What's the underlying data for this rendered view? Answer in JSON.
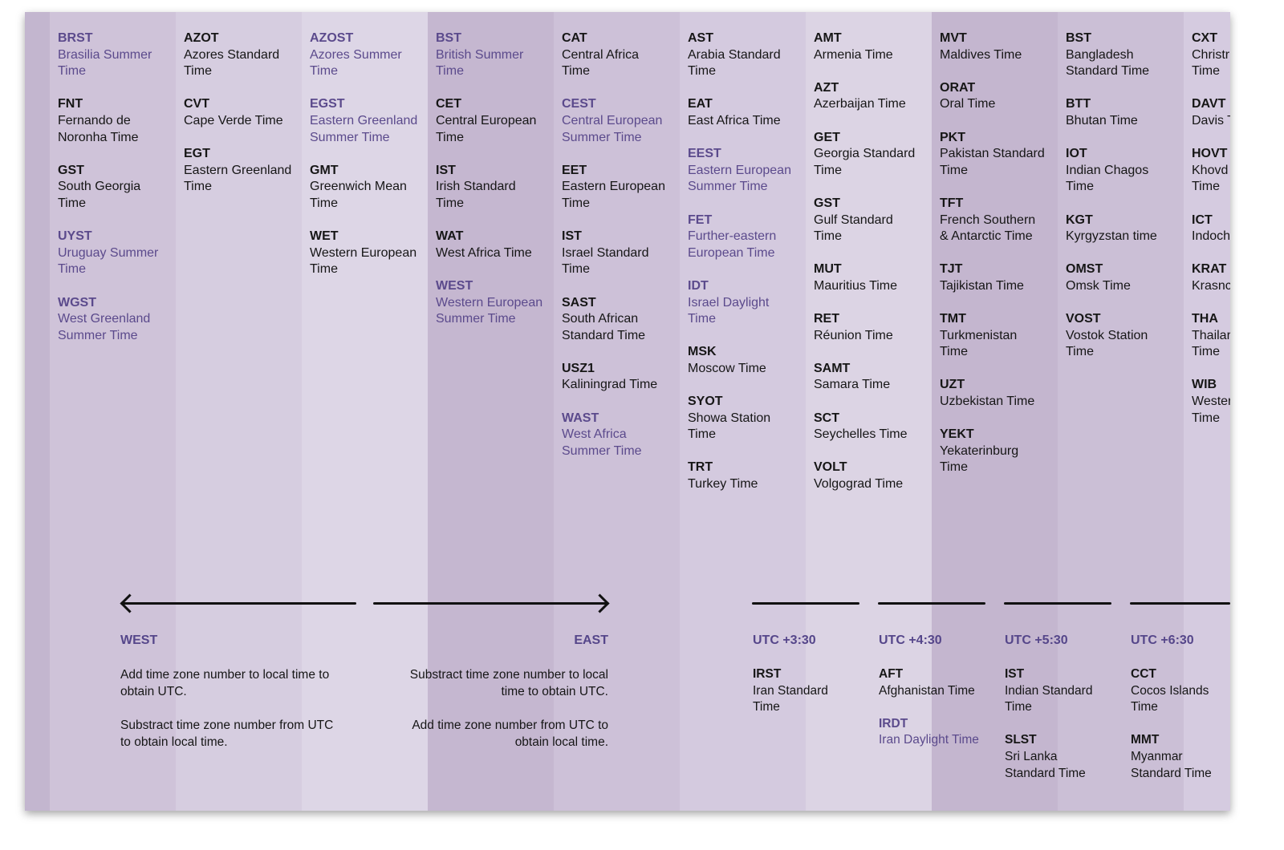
{
  "colors": {
    "summer_text": "#5b4a8c",
    "standard_text": "#161616",
    "column_shades": [
      "#c3b6cf",
      "#cfc3d9",
      "#d6cde0",
      "#ddd6e6",
      "#c5b7d0",
      "#cdc1d8",
      "#d4cadf",
      "#dcd4e4",
      "#c4b6cf",
      "#cbbfd6",
      "#d5cbe0"
    ]
  },
  "columns": [
    {
      "entries": [
        {
          "code": "BRST",
          "name": "Brasilia Summer\nTime",
          "summer": true
        },
        {
          "code": "FNT",
          "name": "Fernando de\nNoronha Time",
          "summer": false
        },
        {
          "code": "GST",
          "name": "South Georgia\nTime",
          "summer": false
        },
        {
          "code": "UYST",
          "name": "Uruguay Summer\nTime",
          "summer": true
        },
        {
          "code": "WGST",
          "name": "West Greenland\nSummer Time",
          "summer": true
        }
      ]
    },
    {
      "entries": [
        {
          "code": "AZOT",
          "name": "Azores Standard\nTime",
          "summer": false
        },
        {
          "code": "CVT",
          "name": "Cape Verde Time",
          "summer": false
        },
        {
          "code": "EGT",
          "name": "Eastern Greenland\nTime",
          "summer": false
        }
      ]
    },
    {
      "entries": [
        {
          "code": "AZOST",
          "name": "Azores Summer\nTime",
          "summer": true
        },
        {
          "code": "EGST",
          "name": "Eastern Greenland\nSummer Time",
          "summer": true
        },
        {
          "code": "GMT",
          "name": "Greenwich Mean\nTime",
          "summer": false
        },
        {
          "code": "WET",
          "name": "Western European\nTime",
          "summer": false
        }
      ]
    },
    {
      "entries": [
        {
          "code": "BST",
          "name": "British Summer\nTime",
          "summer": true
        },
        {
          "code": "CET",
          "name": "Central European\nTime",
          "summer": false
        },
        {
          "code": "IST",
          "name": "Irish Standard\nTime",
          "summer": false
        },
        {
          "code": "WAT",
          "name": "West Africa Time",
          "summer": false
        },
        {
          "code": "WEST",
          "name": "Western European\nSummer Time",
          "summer": true
        }
      ]
    },
    {
      "entries": [
        {
          "code": "CAT",
          "name": "Central Africa\nTime",
          "summer": false
        },
        {
          "code": "CEST",
          "name": "Central European\nSummer Time",
          "summer": true
        },
        {
          "code": "EET",
          "name": "Eastern European\nTime",
          "summer": false
        },
        {
          "code": "IST",
          "name": "Israel Standard\nTime",
          "summer": false
        },
        {
          "code": "SAST",
          "name": "South African\nStandard Time",
          "summer": false
        },
        {
          "code": "USZ1",
          "name": "Kaliningrad Time",
          "summer": false
        },
        {
          "code": "WAST",
          "name": "West Africa\nSummer Time",
          "summer": true
        }
      ]
    },
    {
      "entries": [
        {
          "code": "AST",
          "name": "Arabia Standard\nTime",
          "summer": false
        },
        {
          "code": "EAT",
          "name": "East Africa Time",
          "summer": false
        },
        {
          "code": "EEST",
          "name": "Eastern European\nSummer Time",
          "summer": true
        },
        {
          "code": "FET",
          "name": "Further-eastern\nEuropean Time",
          "summer": true
        },
        {
          "code": "IDT",
          "name": "Israel Daylight\nTime",
          "summer": true
        },
        {
          "code": "MSK",
          "name": "Moscow Time",
          "summer": false
        },
        {
          "code": "SYOT",
          "name": "Showa Station\nTime",
          "summer": false
        },
        {
          "code": "TRT",
          "name": "Turkey Time",
          "summer": false
        }
      ]
    },
    {
      "entries": [
        {
          "code": "AMT",
          "name": "Armenia Time",
          "summer": false
        },
        {
          "code": "AZT",
          "name": "Azerbaijan Time",
          "summer": false
        },
        {
          "code": "GET",
          "name": "Georgia Standard\nTime",
          "summer": false
        },
        {
          "code": "GST",
          "name": "Gulf Standard\nTime",
          "summer": false
        },
        {
          "code": "MUT",
          "name": "Mauritius Time",
          "summer": false
        },
        {
          "code": "RET",
          "name": "Réunion Time",
          "summer": false
        },
        {
          "code": "SAMT",
          "name": "Samara Time",
          "summer": false
        },
        {
          "code": "SCT",
          "name": "Seychelles Time",
          "summer": false
        },
        {
          "code": "VOLT",
          "name": "Volgograd Time",
          "summer": false
        }
      ]
    },
    {
      "entries": [
        {
          "code": "MVT",
          "name": "Maldives Time",
          "summer": false
        },
        {
          "code": "ORAT",
          "name": "Oral Time",
          "summer": false
        },
        {
          "code": "PKT",
          "name": "Pakistan Standard\nTime",
          "summer": false
        },
        {
          "code": "TFT",
          "name": "French Southern\n& Antarctic Time",
          "summer": false
        },
        {
          "code": "TJT",
          "name": "Tajikistan Time",
          "summer": false
        },
        {
          "code": "TMT",
          "name": "Turkmenistan\nTime",
          "summer": false
        },
        {
          "code": "UZT",
          "name": "Uzbekistan Time",
          "summer": false
        },
        {
          "code": "YEKT",
          "name": "Yekaterinburg\nTime",
          "summer": false
        }
      ]
    },
    {
      "entries": [
        {
          "code": "BST",
          "name": "Bangladesh\nStandard Time",
          "summer": false
        },
        {
          "code": "BTT",
          "name": "Bhutan Time",
          "summer": false
        },
        {
          "code": "IOT",
          "name": "Indian Chagos\nTime",
          "summer": false
        },
        {
          "code": "KGT",
          "name": "Kyrgyzstan time",
          "summer": false
        },
        {
          "code": "OMST",
          "name": "Omsk Time",
          "summer": false
        },
        {
          "code": "VOST",
          "name": "Vostok Station\nTime",
          "summer": false
        }
      ]
    },
    {
      "entries": [
        {
          "code": "CXT",
          "name": "Christr\nTime",
          "summer": false
        },
        {
          "code": "DAVT",
          "name": "Davis T",
          "summer": false
        },
        {
          "code": "HOVT",
          "name": "Khovd\nTime",
          "summer": false
        },
        {
          "code": "ICT",
          "name": "Indoch",
          "summer": false
        },
        {
          "code": "KRAT",
          "name": "Krasnc",
          "summer": false
        },
        {
          "code": "THA",
          "name": "Thailar\nTime",
          "summer": false
        },
        {
          "code": "WIB",
          "name": "Wester\nTime",
          "summer": false
        }
      ]
    }
  ],
  "direction": {
    "west": {
      "label": "WEST",
      "note": "Add time zone number to local time to\nobtain UTC.\n\nSubstract time zone number from UTC\nto obtain local time."
    },
    "east": {
      "label": "EAST",
      "note": "Substract time zone number to local\ntime to obtain UTC.\n\nAdd time zone number from UTC to\nobtain local time."
    }
  },
  "half_hour_zones": [
    {
      "label": "UTC +3:30",
      "entries": [
        {
          "code": "IRST",
          "name": "Iran Standard\nTime",
          "summer": false
        }
      ]
    },
    {
      "label": "UTC +4:30",
      "entries": [
        {
          "code": "AFT",
          "name": "Afghanistan Time",
          "summer": false
        },
        {
          "code": "IRDT",
          "name": "Iran Daylight Time",
          "summer": true
        }
      ]
    },
    {
      "label": "UTC +5:30",
      "entries": [
        {
          "code": "IST",
          "name": "Indian Standard\nTime",
          "summer": false
        },
        {
          "code": "SLST",
          "name": "Sri Lanka\nStandard Time",
          "summer": false
        }
      ]
    },
    {
      "label": "UTC +6:30",
      "entries": [
        {
          "code": "CCT",
          "name": "Cocos Islands\nTime",
          "summer": false
        },
        {
          "code": "MMT",
          "name": "Myanmar\nStandard Time",
          "summer": false
        }
      ]
    }
  ]
}
